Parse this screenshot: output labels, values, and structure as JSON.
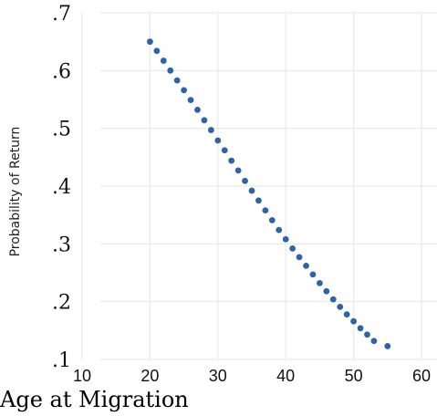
{
  "chart_data": {
    "type": "scatter",
    "xlabel": "Age at Migration",
    "ylabel": "Probability of Return",
    "xlim": [
      10,
      60
    ],
    "ylim": [
      0.1,
      0.7
    ],
    "x_ticks": [
      10,
      20,
      30,
      40,
      50,
      60
    ],
    "x_tick_labels": [
      "10",
      "20",
      "30",
      "40",
      "50",
      "60"
    ],
    "y_ticks": [
      0.1,
      0.2,
      0.3,
      0.4,
      0.5,
      0.6,
      0.7
    ],
    "y_tick_labels": [
      ".1",
      ".2",
      ".3",
      ".4",
      ".5",
      ".6",
      ".7"
    ],
    "grid": true,
    "color": "#2e63a8",
    "series": [
      {
        "x": [
          20,
          21,
          22,
          23,
          24,
          25,
          26,
          27,
          28,
          29,
          30,
          31,
          32,
          33,
          34,
          35,
          36,
          37,
          38,
          39,
          40,
          41,
          42,
          43,
          44,
          45,
          46,
          47,
          48,
          49,
          50,
          51,
          52,
          53,
          55
        ],
        "y": [
          0.65,
          0.634,
          0.617,
          0.6,
          0.583,
          0.566,
          0.549,
          0.532,
          0.514,
          0.497,
          0.479,
          0.462,
          0.444,
          0.427,
          0.409,
          0.392,
          0.375,
          0.358,
          0.341,
          0.324,
          0.308,
          0.292,
          0.277,
          0.262,
          0.247,
          0.232,
          0.218,
          0.204,
          0.191,
          0.178,
          0.166,
          0.154,
          0.143,
          0.132,
          0.123
        ]
      }
    ]
  }
}
